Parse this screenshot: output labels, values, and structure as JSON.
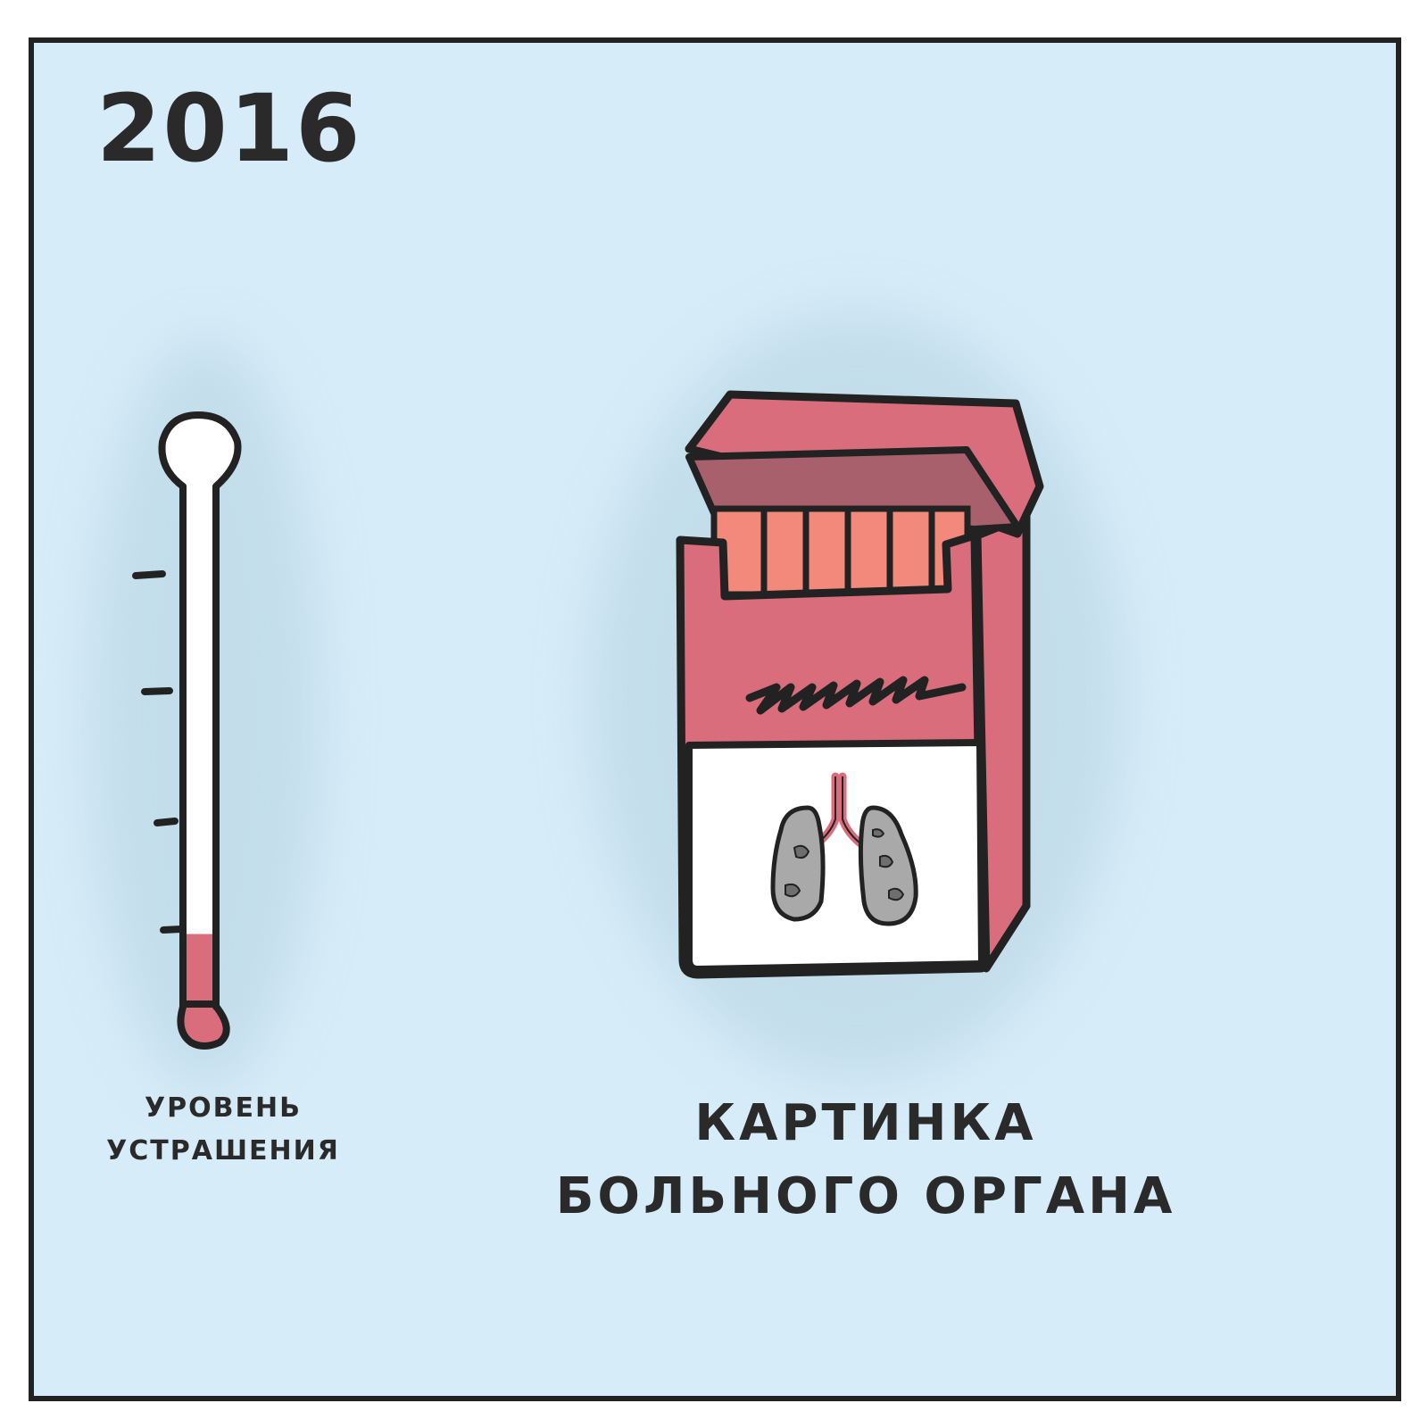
{
  "panel": {
    "year": "2016",
    "background": "#d6ecf8"
  },
  "thermometer": {
    "label_line1": "УРОВЕНЬ",
    "label_line2": "УСТРАШЕНИЯ",
    "fill_level": 0.15,
    "fill_color": "#d96d7c"
  },
  "pack": {
    "caption_line1": "КАРТИНКА",
    "caption_line2": "БОЛЬНОГО ОРГАНА",
    "box_color": "#d96d7c",
    "cigarette_color": "#f2897b",
    "lungs_color": "#a9a9a9"
  }
}
